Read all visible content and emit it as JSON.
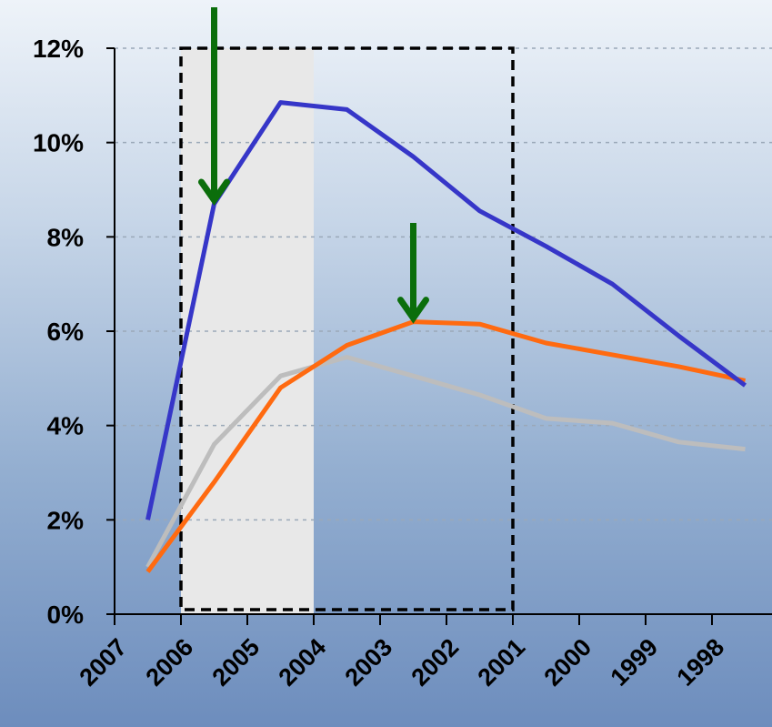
{
  "chart_data": {
    "type": "line",
    "x": [
      "2007",
      "2006",
      "2005",
      "2004",
      "2003",
      "2002",
      "2001",
      "2000",
      "1999",
      "1998"
    ],
    "y_tick_labels": [
      "0%",
      "2%",
      "4%",
      "6%",
      "8%",
      "10%",
      "12%"
    ],
    "ylim": [
      0,
      12
    ],
    "grid": true,
    "series": [
      {
        "color": "#3636c8",
        "values": [
          2.0,
          8.7,
          10.85,
          10.7,
          9.7,
          8.55,
          7.8,
          7.0,
          5.9,
          4.85
        ]
      },
      {
        "color": "#ff6a10",
        "values": [
          0.9,
          2.8,
          4.8,
          5.7,
          6.2,
          6.15,
          5.75,
          5.5,
          5.25,
          4.95
        ]
      },
      {
        "color": "#bdbdbd",
        "values": [
          1.0,
          3.6,
          5.05,
          5.45,
          5.05,
          4.65,
          4.15,
          4.05,
          3.65,
          3.5
        ]
      }
    ],
    "highlight_band": {
      "from": "2006",
      "to": "2004",
      "color": "#e8e8e8"
    },
    "dashed_box": {
      "from": "2006",
      "to": "2001",
      "ymin": 0,
      "ymax": 12
    },
    "annotations": [
      {
        "type": "arrow",
        "color": "#0b6e0b",
        "target_series": 0,
        "target_x": 2005.5
      },
      {
        "type": "arrow",
        "color": "#0b6e0b",
        "target_series": 1,
        "target_x": 2002.5
      }
    ]
  }
}
